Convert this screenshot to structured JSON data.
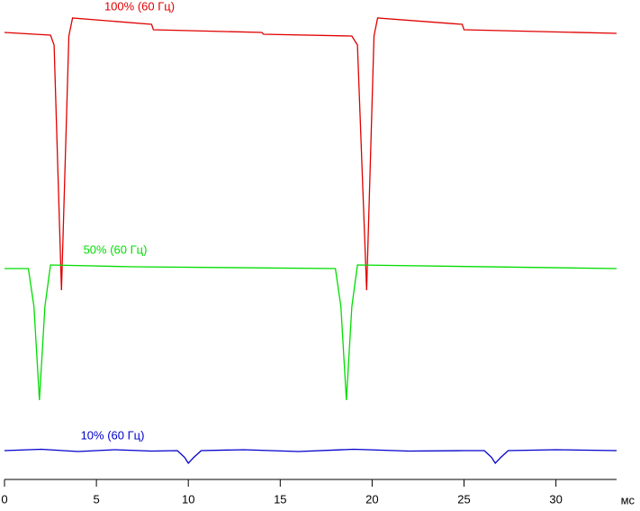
{
  "chart_data": {
    "type": "line",
    "x_label": "мс",
    "xlim": [
      0,
      33.3
    ],
    "xticks": [
      0,
      5,
      10,
      15,
      20,
      25,
      30
    ],
    "ylim": [
      0,
      108
    ],
    "grid": false,
    "series": [
      {
        "name": "100% (60 Гц)",
        "color": "#e00000",
        "x": [
          0,
          2.5,
          2.7,
          3.1,
          3.5,
          3.7,
          8.0,
          8.1,
          14,
          14.1,
          18.9,
          19.2,
          19.7,
          20.1,
          20.3,
          24.9,
          25.0,
          33.3
        ],
        "values": [
          100.8,
          100.2,
          98,
          43.6,
          100,
          104,
          102.6,
          101.4,
          100.8,
          100.4,
          100,
          98,
          43.6,
          100,
          104,
          102.6,
          101.4,
          100.6
        ]
      },
      {
        "name": "50% (60 Гц)",
        "color": "#00dd00",
        "x": [
          0,
          1.3,
          1.6,
          1.9,
          2.2,
          2.5,
          7.0,
          18.0,
          18.3,
          18.6,
          18.9,
          19.2,
          33.3
        ],
        "values": [
          48.4,
          48.4,
          40,
          19.2,
          40,
          49.2,
          48.8,
          48.4,
          40,
          19.2,
          40,
          49.2,
          48.4
        ]
      },
      {
        "name": "10% (60 Гц)",
        "color": "#0000cc",
        "x": [
          0,
          2,
          4,
          6,
          8,
          9.4,
          9.8,
          10,
          10.3,
          10.7,
          13,
          16,
          19,
          22,
          25,
          26.1,
          26.5,
          26.7,
          27,
          27.4,
          30,
          33.3
        ],
        "values": [
          8,
          8.3,
          7.8,
          8.2,
          7.9,
          8,
          6.5,
          5.2,
          6.5,
          8,
          8.2,
          7.8,
          8.3,
          7.9,
          8,
          8,
          6.5,
          5.2,
          6.5,
          8,
          8.2,
          8
        ]
      }
    ]
  }
}
